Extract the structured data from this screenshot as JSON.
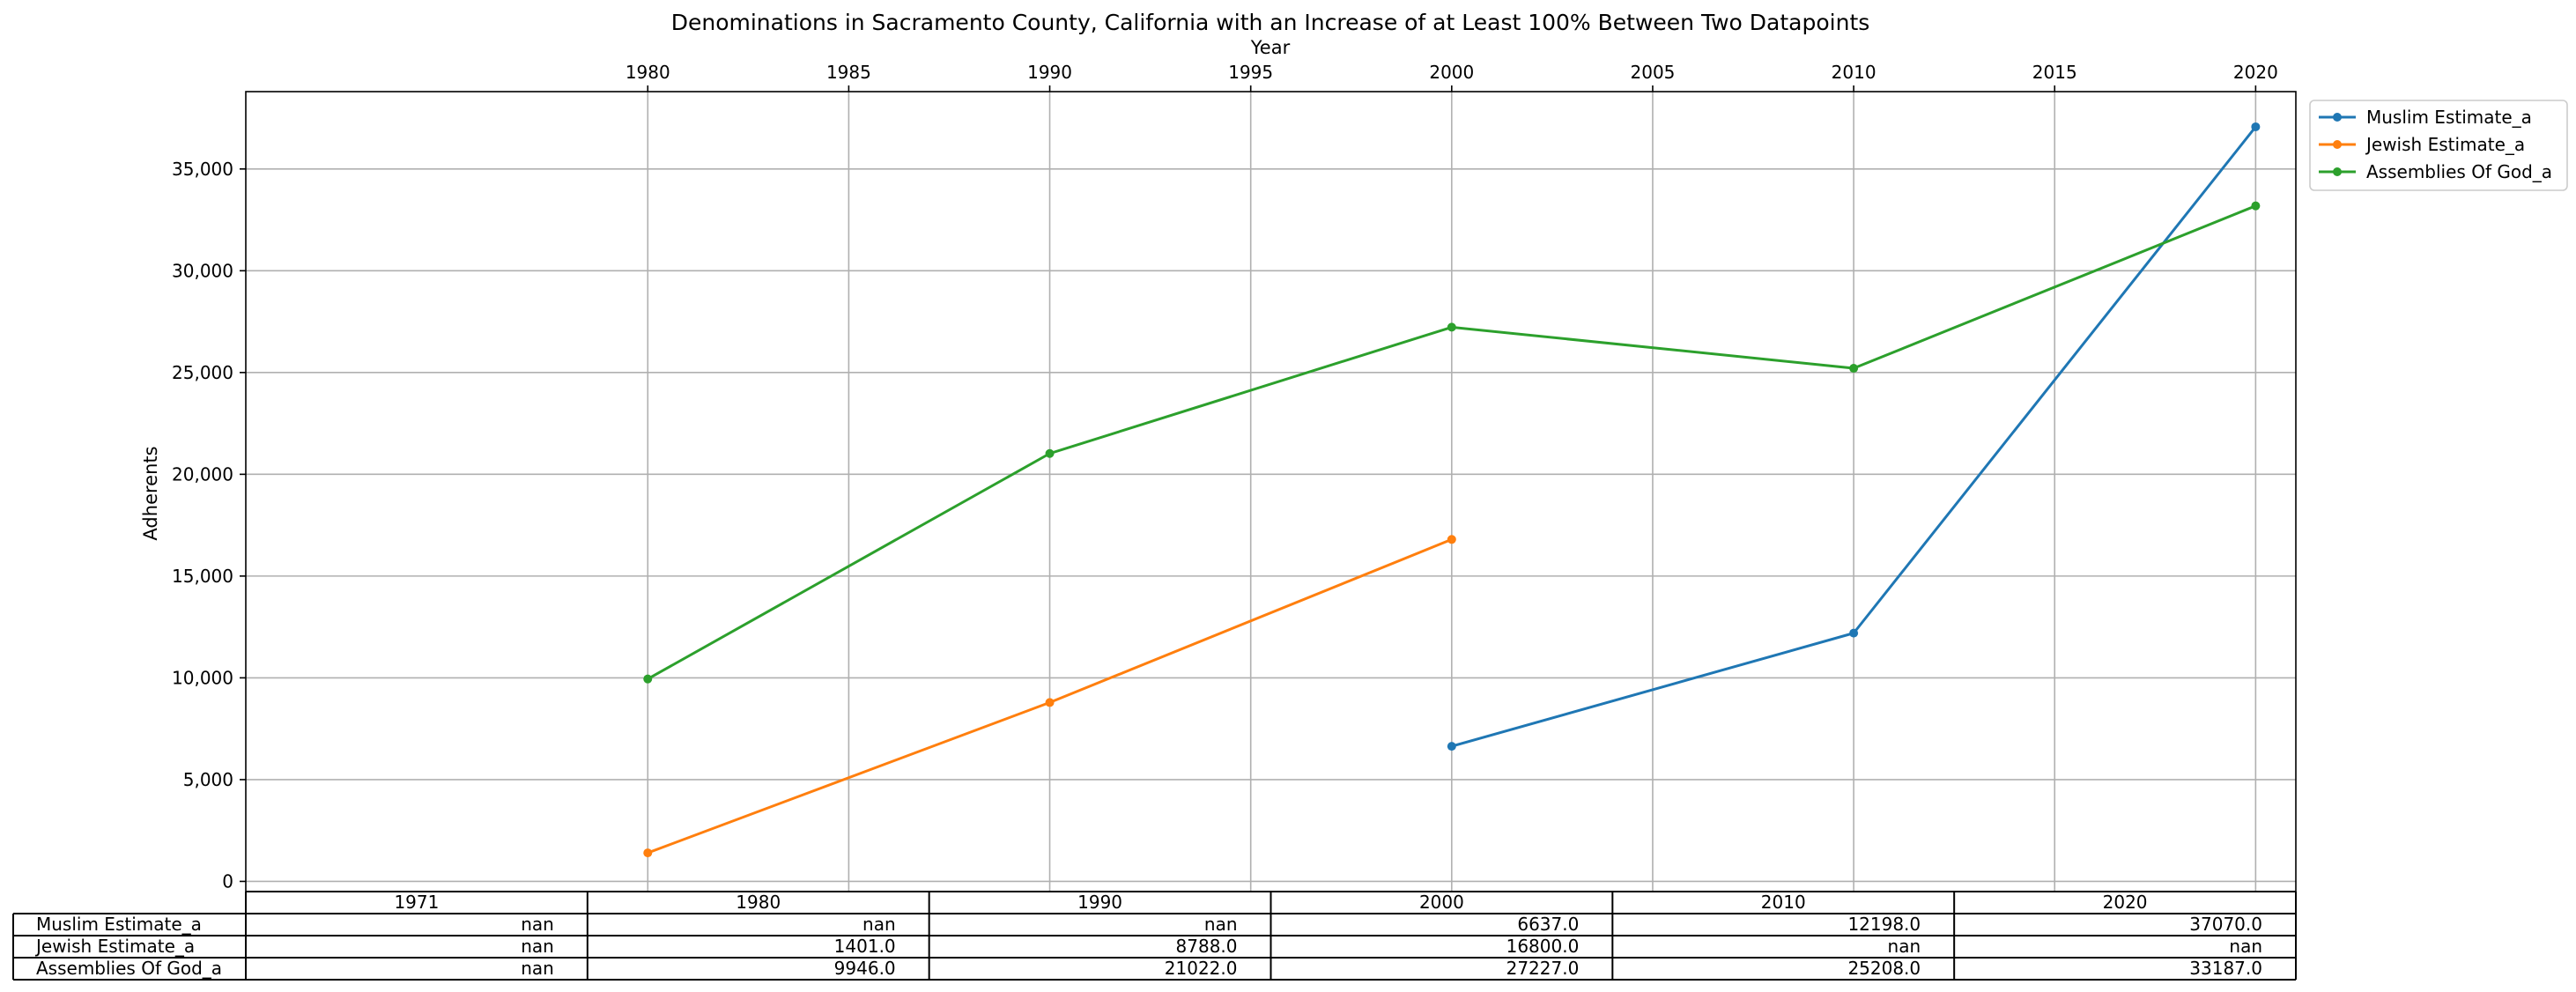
{
  "chart_data": {
    "type": "line",
    "title": "Denominations in Sacramento County, California with an Increase of at Least 100% Between Two Datapoints",
    "xlabel": "Year",
    "ylabel": "Adherents",
    "xlim": [
      1970,
      2021
    ],
    "ylim": [
      -500,
      38800
    ],
    "x_ticks": [
      "1980",
      "1985",
      "1990",
      "1995",
      "2000",
      "2005",
      "2010",
      "2015",
      "2020"
    ],
    "y_ticks": [
      "0",
      "5,000",
      "10,000",
      "15,000",
      "20,000",
      "25,000",
      "30,000",
      "35,000"
    ],
    "grid": true,
    "legend_position": "outside top-right",
    "series": [
      {
        "name": "Muslim Estimate_a",
        "color": "#1f77b4",
        "points": [
          [
            2000,
            6637
          ],
          [
            2010,
            12198
          ],
          [
            2020,
            37070
          ]
        ]
      },
      {
        "name": "Jewish Estimate_a",
        "color": "#ff7f0e",
        "points": [
          [
            1980,
            1401
          ],
          [
            1990,
            8788
          ],
          [
            2000,
            16800
          ]
        ]
      },
      {
        "name": "Assemblies Of God_a",
        "color": "#2ca02c",
        "points": [
          [
            1980,
            9946
          ],
          [
            1990,
            21022
          ],
          [
            2000,
            27227
          ],
          [
            2010,
            25208
          ],
          [
            2020,
            33187
          ]
        ]
      }
    ],
    "table": {
      "columns": [
        "1971",
        "1980",
        "1990",
        "2000",
        "2010",
        "2020"
      ],
      "rows": [
        {
          "label": "Muslim Estimate_a",
          "cells": [
            "nan",
            "nan",
            "nan",
            "6637.0",
            "12198.0",
            "37070.0"
          ]
        },
        {
          "label": "Jewish Estimate_a",
          "cells": [
            "nan",
            "1401.0",
            "8788.0",
            "16800.0",
            "nan",
            "nan"
          ]
        },
        {
          "label": "Assemblies Of God_a",
          "cells": [
            "nan",
            "9946.0",
            "21022.0",
            "27227.0",
            "25208.0",
            "33187.0"
          ]
        }
      ]
    }
  }
}
